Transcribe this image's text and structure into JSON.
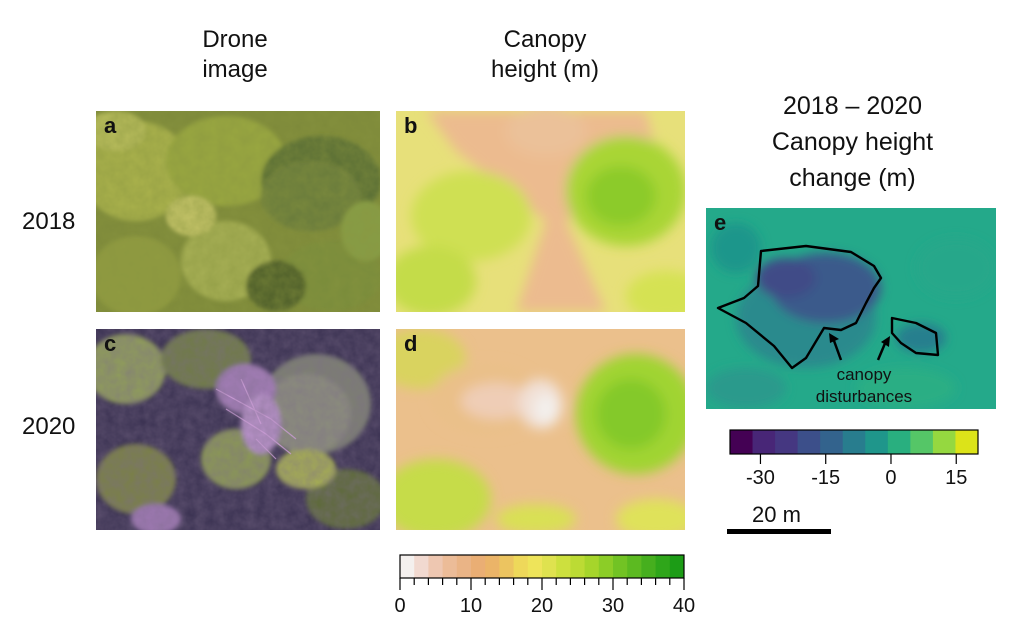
{
  "columns": {
    "drone": [
      "Drone",
      "image"
    ],
    "canopy": [
      "Canopy",
      "height (m)"
    ],
    "change": [
      "2018 – 2020",
      "Canopy height",
      "change (m)"
    ]
  },
  "rows": [
    "2018",
    "2020"
  ],
  "panels": {
    "a": {
      "letter": "a",
      "kind": "drone image",
      "year": "2018"
    },
    "b": {
      "letter": "b",
      "kind": "canopy height",
      "year": "2018"
    },
    "c": {
      "letter": "c",
      "kind": "drone image",
      "year": "2020"
    },
    "d": {
      "letter": "d",
      "kind": "canopy height",
      "year": "2020"
    },
    "e": {
      "letter": "e",
      "kind": "height change"
    }
  },
  "annotation": [
    "canopy",
    "disturbances"
  ],
  "height_legend": {
    "range": [
      0,
      40
    ],
    "tick_labels": [
      "0",
      "10",
      "20",
      "30",
      "40"
    ],
    "tick_values": [
      0,
      10,
      20,
      30,
      40
    ],
    "minor_step": 2,
    "colors": [
      "#f4f0ee",
      "#f1d9d0",
      "#eec7b1",
      "#ecbc98",
      "#eab486",
      "#eaae74",
      "#ebb468",
      "#ecc460",
      "#eed85a",
      "#eee45a",
      "#dfe24f",
      "#cde03e",
      "#bcdb34",
      "#a6d52b",
      "#8ccd27",
      "#72c324",
      "#5cba21",
      "#46af1e",
      "#2fa61a",
      "#1c9c16"
    ]
  },
  "change_legend": {
    "range": [
      -37,
      20
    ],
    "tick_labels": [
      "-30",
      "-15",
      "0",
      "15"
    ],
    "tick_values": [
      -30,
      -15,
      0,
      15
    ],
    "colors": [
      "#440154",
      "#482677",
      "#453781",
      "#3c4f8a",
      "#33638d",
      "#287d8e",
      "#1f968b",
      "#29af7f",
      "#55c667",
      "#95d840",
      "#dce319"
    ]
  },
  "scale_bar": {
    "label": "20 m"
  }
}
